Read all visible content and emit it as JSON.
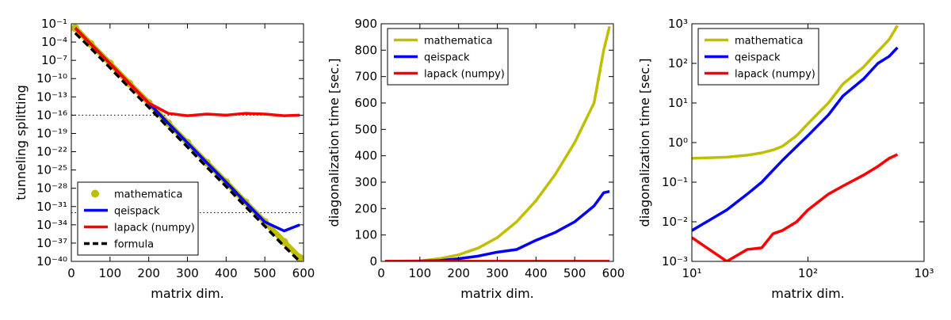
{
  "chart_data": [
    {
      "type": "line",
      "ylabel": "tunneling splitting",
      "xlabel": "matrix dim.",
      "xscale": "linear",
      "yscale": "log",
      "xlim": [
        0,
        600
      ],
      "ylim": [
        1e-40,
        0.1
      ],
      "xticks": [
        0,
        100,
        200,
        300,
        400,
        500,
        600
      ],
      "yticks": [
        {
          "value": 0.1,
          "label": "10⁻¹"
        },
        {
          "value": 0.0001,
          "label": "10⁻⁴"
        },
        {
          "value": 1e-07,
          "label": "10⁻⁷"
        },
        {
          "value": 1e-10,
          "label": "10⁻¹⁰"
        },
        {
          "value": 1e-13,
          "label": "10⁻¹³"
        },
        {
          "value": 1e-16,
          "label": "10⁻¹⁶"
        },
        {
          "value": 1e-19,
          "label": "10⁻¹⁹"
        },
        {
          "value": 1e-22,
          "label": "10⁻²²"
        },
        {
          "value": 1e-25,
          "label": "10⁻²⁵"
        },
        {
          "value": 1e-28,
          "label": "10⁻²⁸"
        },
        {
          "value": 1e-31,
          "label": "10⁻³¹"
        },
        {
          "value": 1e-34,
          "label": "10⁻³⁴"
        },
        {
          "value": 1e-37,
          "label": "10⁻³⁷"
        },
        {
          "value": 1e-40,
          "label": "10⁻⁴⁰"
        }
      ],
      "hlines": [
        1e-16,
        1e-32
      ],
      "legend": "lower left",
      "x": [
        10,
        50,
        100,
        150,
        200,
        250,
        300,
        350,
        400,
        450,
        500,
        550,
        590
      ],
      "series": [
        {
          "name": "mathematica",
          "color": "#bfbf00",
          "marker": "o",
          "values": [
            0.02,
            5e-05,
            3e-08,
            1.6e-11,
            1e-14,
            5e-18,
            3e-21,
            1.6e-24,
            1e-27,
            5e-31,
            3e-34,
            1.6e-37,
            4e-40
          ]
        },
        {
          "name": "qeispack",
          "color": "#0000ff",
          "values": [
            0.02,
            5e-05,
            3e-08,
            1.6e-11,
            1e-14,
            5e-18,
            3e-21,
            1.6e-24,
            1e-27,
            5e-31,
            3e-34,
            1e-35,
            1e-34
          ]
        },
        {
          "name": "lapack (numpy)",
          "color": "#ff0000",
          "values": [
            0.02,
            5e-05,
            3e-08,
            1.6e-11,
            1e-14,
            2e-16,
            8e-17,
            1.5e-16,
            1e-16,
            2e-16,
            1.5e-16,
            8e-17,
            1e-16
          ]
        },
        {
          "name": "formula",
          "color": "#000000",
          "linestyle": "dashed",
          "values": [
            0.003,
            1e-05,
            6e-09,
            3e-12,
            2e-15,
            1e-18,
            6e-22,
            3e-25,
            2e-28,
            1e-31,
            6e-35,
            3e-38,
            1e-40
          ]
        }
      ]
    },
    {
      "type": "line",
      "ylabel": "diagonalization time [sec.]",
      "xlabel": "matrix dim.",
      "xscale": "linear",
      "yscale": "linear",
      "xlim": [
        0,
        600
      ],
      "ylim": [
        0,
        900
      ],
      "xticks": [
        0,
        100,
        200,
        300,
        400,
        500,
        600
      ],
      "yticks": [
        0,
        100,
        200,
        300,
        400,
        500,
        600,
        700,
        800,
        900
      ],
      "legend": "upper left",
      "x": [
        10,
        100,
        150,
        200,
        250,
        300,
        350,
        400,
        450,
        500,
        550,
        575,
        590
      ],
      "series": [
        {
          "name": "mathematica",
          "color": "#bfbf00",
          "values": [
            0,
            2,
            10,
            25,
            50,
            90,
            150,
            230,
            330,
            450,
            600,
            800,
            890
          ]
        },
        {
          "name": "qeispack",
          "color": "#0000ff",
          "values": [
            0,
            1,
            3,
            10,
            20,
            35,
            45,
            80,
            110,
            150,
            210,
            260,
            265
          ]
        },
        {
          "name": "lapack (numpy)",
          "color": "#ff0000",
          "values": [
            0.5,
            0.5,
            0.5,
            0.5,
            0.5,
            0.5,
            0.5,
            0.5,
            0.5,
            0.5,
            0.5,
            0.5,
            0.5
          ]
        }
      ]
    },
    {
      "type": "line",
      "ylabel": "diagonalization time [sec.]",
      "xlabel": "matrix dim.",
      "xscale": "log",
      "yscale": "log",
      "xlim": [
        10,
        1000
      ],
      "ylim": [
        0.001,
        1000.0
      ],
      "xticks": [
        {
          "value": 10,
          "label": "10¹"
        },
        {
          "value": 100,
          "label": "10²"
        },
        {
          "value": 1000,
          "label": "10³"
        }
      ],
      "yticks": [
        {
          "value": 0.001,
          "label": "10⁻³"
        },
        {
          "value": 0.01,
          "label": "10⁻²"
        },
        {
          "value": 0.1,
          "label": "10⁻¹"
        },
        {
          "value": 1,
          "label": "10⁰"
        },
        {
          "value": 10,
          "label": "10¹"
        },
        {
          "value": 100,
          "label": "10²"
        },
        {
          "value": 1000,
          "label": "10³"
        }
      ],
      "legend": "upper left",
      "x": [
        10,
        20,
        30,
        40,
        50,
        60,
        80,
        100,
        150,
        200,
        300,
        400,
        500,
        590
      ],
      "series": [
        {
          "name": "mathematica",
          "color": "#bfbf00",
          "values": [
            0.4,
            0.43,
            0.48,
            0.55,
            0.65,
            0.8,
            1.5,
            3,
            10,
            30,
            80,
            200,
            400,
            900
          ]
        },
        {
          "name": "qeispack",
          "color": "#0000ff",
          "values": [
            0.006,
            0.02,
            0.05,
            0.1,
            0.2,
            0.35,
            0.8,
            1.5,
            5,
            15,
            40,
            100,
            150,
            250
          ]
        },
        {
          "name": "lapack (numpy)",
          "color": "#ff0000",
          "values": [
            0.004,
            0.001,
            0.002,
            0.0022,
            0.005,
            0.006,
            0.01,
            0.02,
            0.05,
            0.08,
            0.15,
            0.25,
            0.4,
            0.5
          ]
        }
      ]
    }
  ]
}
